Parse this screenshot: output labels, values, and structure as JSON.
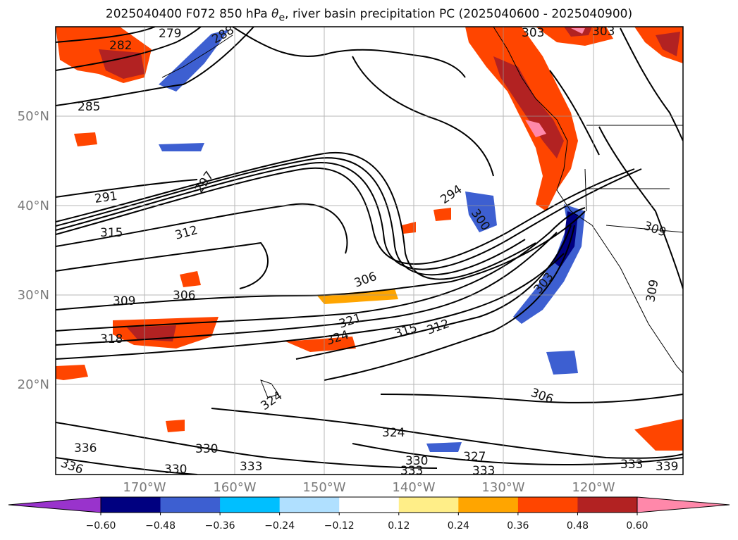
{
  "title": {
    "prefix": "2025040400 F072 850 hPa ",
    "theta": "θ",
    "sub": "e",
    "suffix": ", river basin precipitation PC (2025040600 - 2025040900)"
  },
  "lat_labels": [
    "50°N",
    "40°N",
    "30°N",
    "20°N"
  ],
  "lon_labels": [
    "170°W",
    "160°W",
    "150°W",
    "140°W",
    "130°W",
    "120°W"
  ],
  "contour_labels": [
    "279",
    "282",
    "285",
    "288",
    "291",
    "297",
    "294",
    "300",
    "303",
    "303",
    "303",
    "306",
    "306",
    "306",
    "309",
    "309",
    "309",
    "312",
    "312",
    "315",
    "315",
    "318",
    "321",
    "324",
    "324",
    "324",
    "327",
    "330",
    "330",
    "330",
    "333",
    "333",
    "333",
    "333",
    "336",
    "336",
    "339"
  ],
  "colorbar": {
    "ticks": [
      "−0.60",
      "−0.48",
      "−0.36",
      "−0.24",
      "−0.12",
      "0.12",
      "0.24",
      "0.36",
      "0.48",
      "0.60"
    ],
    "colors": [
      "#9933cc",
      "#000080",
      "#3d5fd1",
      "#00bfff",
      "#b0e0ff",
      "#ffffff",
      "#ffee88",
      "#ffa500",
      "#ff4500",
      "#b22222",
      "#ff88aa"
    ]
  }
}
